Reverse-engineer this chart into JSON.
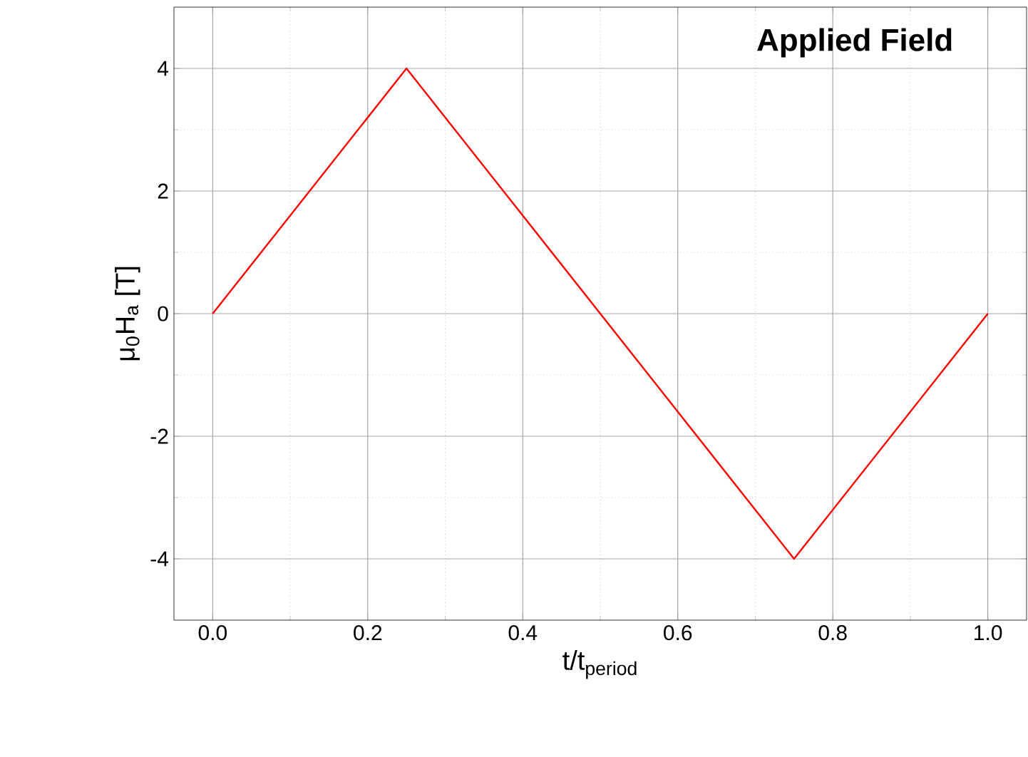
{
  "chart_data": {
    "type": "line",
    "title": "Applied Field",
    "xlabel": "t/t$_{period}$",
    "ylabel": "μ$_{0}$H$_{a}$ [T]",
    "x": [
      0,
      0.25,
      0.75,
      1.0
    ],
    "series": [
      {
        "color": "#ff0000",
        "values": [
          0,
          4,
          -4,
          0
        ]
      }
    ],
    "xlim": [
      -0.05,
      1.05
    ],
    "ylim": [
      -5,
      5
    ],
    "xticks": [
      {
        "value": 0,
        "label": "0.0"
      },
      {
        "value": 0.2,
        "label": "0.2"
      },
      {
        "value": 0.4,
        "label": "0.4"
      },
      {
        "value": 0.6,
        "label": "0.6"
      },
      {
        "value": 0.8,
        "label": "0.8"
      },
      {
        "value": 1.0,
        "label": "1.0"
      }
    ],
    "yticks": [
      -4,
      -2,
      0,
      2,
      4
    ],
    "grid": true,
    "marker": "none",
    "line_style": "solid"
  }
}
